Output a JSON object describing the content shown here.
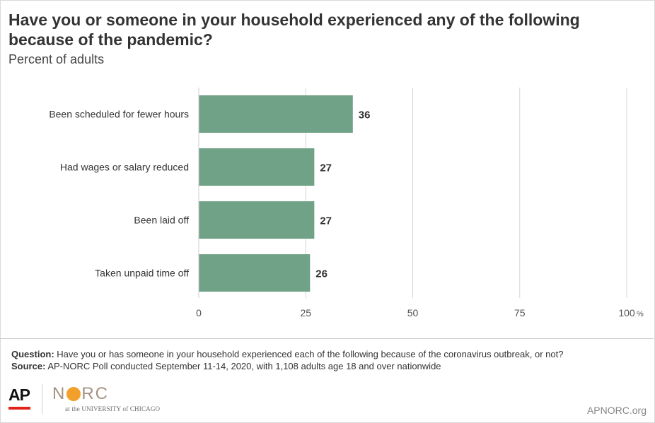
{
  "title": "Have you or someone in your household experienced any of the following because of the pandemic?",
  "subtitle": "Percent of adults",
  "chart_data": {
    "type": "bar",
    "orientation": "horizontal",
    "title": "Have you or someone in your household experienced any of the following because of the pandemic?",
    "subtitle": "Percent of adults",
    "categories": [
      "Been scheduled for fewer hours",
      "Had wages or salary reduced",
      "Been laid off",
      "Taken unpaid time off"
    ],
    "values": [
      36,
      27,
      27,
      26
    ],
    "data_labels": [
      "36",
      "27",
      "27",
      "26"
    ],
    "xlim": [
      0,
      100
    ],
    "xticks": [
      0,
      25,
      50,
      75,
      100
    ],
    "xtick_labels": [
      "0",
      "25",
      "50",
      "75",
      "100"
    ],
    "x_unit_suffix": "%",
    "grid": true,
    "bar_color": "#6fa287"
  },
  "notes": {
    "question_label": "Question:",
    "question_text": "Have you or has someone in your household experienced each of the following because of the coronavirus outbreak, or not?",
    "source_label": "Source:",
    "source_text": "AP-NORC Poll conducted September 11-14, 2020, with 1,108 adults age 18 and over nationwide"
  },
  "footer": {
    "ap_logo_text": "AP",
    "norc_logo_left": "N",
    "norc_logo_right": "RC",
    "norc_tagline": "at the UNIVERSITY of CHICAGO",
    "site": "APNORC.org"
  },
  "colors": {
    "bar": "#6fa287",
    "grid": "#d6d6d6",
    "ap_red": "#e2231a",
    "norc_orange": "#f2a02b"
  }
}
